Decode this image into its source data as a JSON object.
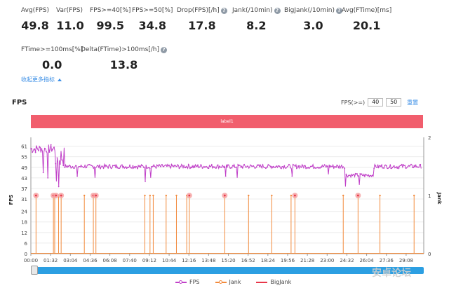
{
  "stats": [
    {
      "label": "Avg(FPS)",
      "value": "49.8",
      "help": false
    },
    {
      "label": "Var(FPS)",
      "value": "11.0",
      "help": false
    },
    {
      "label": "FPS>=40[%]",
      "value": "99.5",
      "help": false
    },
    {
      "label": "FPS>=50[%]",
      "value": "34.8",
      "help": false
    },
    {
      "label": "Drop(FPS)[/h]",
      "value": "17.8",
      "help": true
    },
    {
      "label": "Jank(/10min)",
      "value": "8.2",
      "help": true
    },
    {
      "label": "BigJank(/10min)",
      "value": "3.0",
      "help": true
    },
    {
      "label": "Avg(FTime)[ms]",
      "value": "20.1",
      "help": false
    },
    {
      "label": "FTime>=100ms[%]",
      "value": "0.0",
      "help": false
    },
    {
      "label": "Delta(FTime)>100ms[/h]",
      "value": "13.8",
      "help": true
    }
  ],
  "help_glyph": "?",
  "collapse_link": "收起更多指标",
  "chart_title": "FPS",
  "fps_threshold": {
    "label": "FPS(>=)",
    "value1": "40",
    "value2": "50",
    "reset": "重置"
  },
  "label_bar": "label1",
  "watermark": "安卓论坛",
  "colors": {
    "fps": "#c040c8",
    "jank": "#f28a3c",
    "bigjank": "#e8374a",
    "label_bar": "#f15e6d",
    "slider": "#2c9fe2"
  },
  "chart_data": {
    "type": "line",
    "title": "FPS",
    "x_ticks": [
      "00:00",
      "01:32",
      "03:04",
      "04:36",
      "06:08",
      "07:40",
      "09:12",
      "10:44",
      "12:16",
      "13:48",
      "15:20",
      "16:52",
      "18:24",
      "19:56",
      "21:28",
      "23:00",
      "24:32",
      "26:04",
      "27:36",
      "29:08"
    ],
    "x_range_minutes": [
      0,
      30.5
    ],
    "y_left": {
      "label": "FPS",
      "ticks": [
        0,
        6,
        12,
        18,
        24,
        31,
        37,
        43,
        49,
        55,
        61
      ],
      "range": [
        0,
        66
      ]
    },
    "y_right": {
      "label": "Jank",
      "ticks": [
        0,
        1,
        2
      ],
      "range": [
        0,
        2
      ]
    },
    "series": [
      {
        "name": "FPS",
        "type": "line",
        "segments": [
          {
            "from": 0,
            "to": 1.9,
            "level": 59.5,
            "noise": 2.5
          },
          {
            "from": 1.9,
            "to": 2.6,
            "level": 55,
            "noise": 6
          },
          {
            "from": 2.6,
            "to": 24.4,
            "level": 49.5,
            "noise": 1.2
          },
          {
            "from": 24.4,
            "to": 26.6,
            "level": 44.5,
            "noise": 1.0
          },
          {
            "from": 26.6,
            "to": 30.3,
            "level": 49.5,
            "noise": 1.2
          }
        ]
      },
      {
        "name": "Jank",
        "type": "spike",
        "times": [
          0.4,
          1.75,
          1.85,
          2.15,
          2.35,
          4.15,
          4.85,
          5.05,
          8.85,
          9.25,
          9.5,
          10.5,
          11.3,
          12.1,
          12.3,
          15.05,
          16.9,
          18.7,
          20.2,
          20.5,
          24.25,
          25.4,
          27.1,
          29.75
        ],
        "value": 1
      },
      {
        "name": "BigJank",
        "type": "marker",
        "times": [
          0.4,
          1.75,
          1.95,
          2.35,
          4.85,
          5.05,
          12.3,
          15.05,
          20.5,
          25.4
        ],
        "value": 1
      }
    ],
    "dips": [
      {
        "t": 0.95,
        "v": 46
      },
      {
        "t": 1.35,
        "v": 43
      },
      {
        "t": 1.98,
        "v": 41
      },
      {
        "t": 2.15,
        "v": 38
      },
      {
        "t": 3.6,
        "v": 44
      },
      {
        "t": 5.0,
        "v": 43
      },
      {
        "t": 8.9,
        "v": 41
      },
      {
        "t": 9.3,
        "v": 43
      },
      {
        "t": 15.1,
        "v": 44
      },
      {
        "t": 16.0,
        "v": 43
      },
      {
        "t": 20.3,
        "v": 44
      },
      {
        "t": 23.1,
        "v": 45
      },
      {
        "t": 24.4,
        "v": 38
      },
      {
        "t": 25.5,
        "v": 39
      }
    ],
    "legend": {
      "position": "bottom-center",
      "items": [
        "FPS",
        "Jank",
        "BigJank"
      ]
    },
    "grid": true
  }
}
